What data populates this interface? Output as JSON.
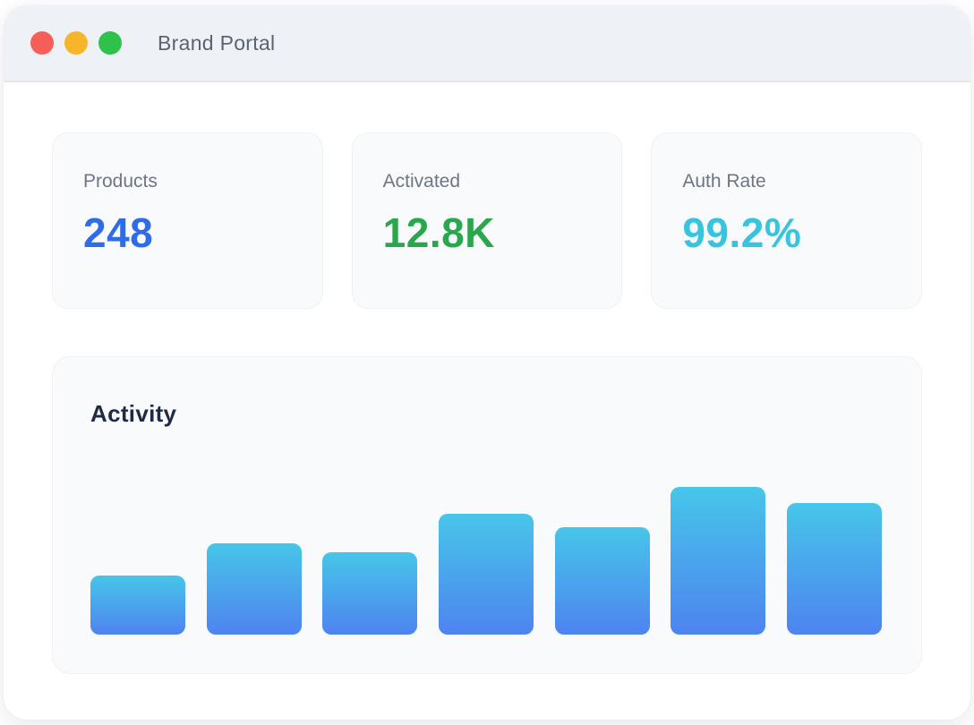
{
  "window": {
    "title": "Brand Portal",
    "traffic_lights": [
      {
        "name": "close",
        "color": "#f65f58"
      },
      {
        "name": "minimize",
        "color": "#f7b52c"
      },
      {
        "name": "maximize",
        "color": "#2ec24d"
      }
    ]
  },
  "stats": [
    {
      "label": "Products",
      "value": "248",
      "color": "#2e6ce8"
    },
    {
      "label": "Activated",
      "value": "12.8K",
      "color": "#2aa64d"
    },
    {
      "label": "Auth Rate",
      "value": "99.2%",
      "color": "#38c3de"
    }
  ],
  "activity": {
    "title": "Activity"
  },
  "chart_data": {
    "type": "bar",
    "title": "Activity",
    "values": [
      40,
      62,
      56,
      82,
      73,
      100,
      89
    ],
    "ylim": [
      0,
      100
    ],
    "xlabel": "",
    "ylabel": "",
    "grid": false,
    "legend": false,
    "axis_labels_visible": false,
    "bar_gradient_top": "#47c6e9",
    "bar_gradient_bottom": "#4e83f0"
  }
}
